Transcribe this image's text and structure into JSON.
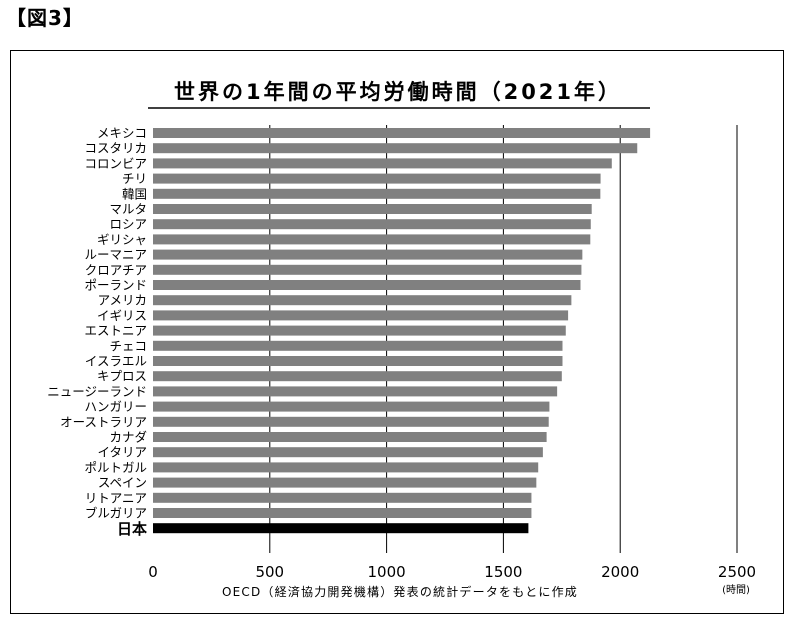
{
  "figure_label": "【図3】",
  "chart_data": {
    "type": "bar",
    "orientation": "horizontal",
    "title": "世界の1年間の平均労働時間（2021年）",
    "categories": [
      "メキシコ",
      "コスタリカ",
      "コロンビア",
      "チリ",
      "韓国",
      "マルタ",
      "ロシア",
      "ギリシャ",
      "ルーマニア",
      "クロアチア",
      "ポーランド",
      "アメリカ",
      "イギリス",
      "エストニア",
      "チェコ",
      "イスラエル",
      "キプロス",
      "ニュージーランド",
      "ハンガリー",
      "オーストラリア",
      "カナダ",
      "イタリア",
      "ポルトガル",
      "スペイン",
      "リトアニア",
      "ブルガリア",
      "日本"
    ],
    "values": [
      2128,
      2073,
      1964,
      1916,
      1915,
      1878,
      1874,
      1872,
      1838,
      1834,
      1830,
      1791,
      1777,
      1767,
      1753,
      1753,
      1750,
      1730,
      1697,
      1694,
      1685,
      1669,
      1649,
      1641,
      1620,
      1620,
      1607
    ],
    "highlight": "日本",
    "colors": {
      "bar": "#808080",
      "highlight": "#000000"
    },
    "xlim": [
      0,
      2500
    ],
    "xticks": [
      0,
      500,
      1000,
      1500,
      2000,
      2500
    ],
    "xlabel": "(時間)",
    "grid": true,
    "source": "OECD（経済協力開発機構）発表の統計データをもとに作成"
  }
}
